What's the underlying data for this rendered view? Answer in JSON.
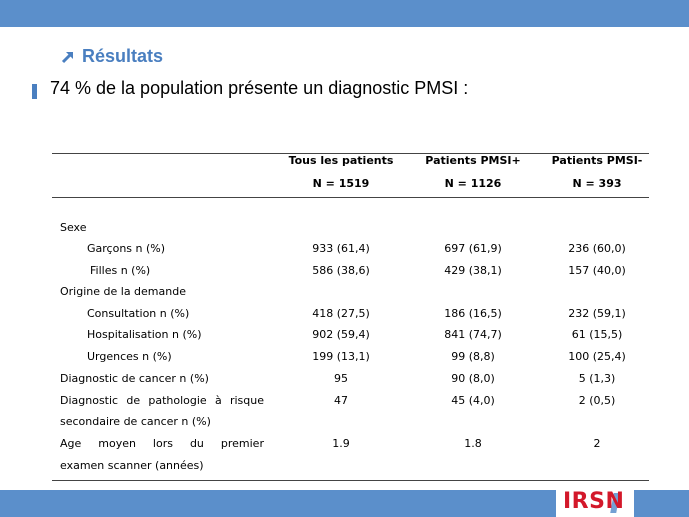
{
  "header": {
    "title": "Résultats",
    "subtitle": "74 % de la population présente un diagnostic PMSI :"
  },
  "table": {
    "columns": [
      {
        "label": "Tous les patients",
        "n": "N = 1519"
      },
      {
        "label": "Patients PMSI+",
        "n": "N = 1126"
      },
      {
        "label": "Patients PMSI-",
        "n": "N = 393"
      }
    ],
    "rows": [
      {
        "label": "Sexe",
        "values": [
          "",
          "",
          ""
        ]
      },
      {
        "label": "Garçons n (%)",
        "values": [
          "933 (61,4)",
          "697 (61,9)",
          "236 (60,0)"
        ]
      },
      {
        "label": "Filles n (%)",
        "values": [
          "586 (38,6)",
          "429 (38,1)",
          "157 (40,0)"
        ]
      },
      {
        "label": "Origine de la demande",
        "values": [
          "",
          "",
          ""
        ]
      },
      {
        "label": "Consultation n (%)",
        "values": [
          "418 (27,5)",
          "186 (16,5)",
          "232 (59,1)"
        ]
      },
      {
        "label": "Hospitalisation n (%)",
        "values": [
          "902 (59,4)",
          "841 (74,7)",
          "61 (15,5)"
        ]
      },
      {
        "label": "Urgences n (%)",
        "values": [
          "199 (13,1)",
          "99 (8,8)",
          "100 (25,4)"
        ]
      },
      {
        "label": "Diagnostic de cancer n (%)",
        "values": [
          "95",
          "90 (8,0)",
          "5 (1,3)"
        ]
      },
      {
        "label_line1_words": [
          "Diagnostic",
          "de",
          "pathologie",
          "à",
          "risque"
        ],
        "label_line2": "secondaire de cancer n (%)",
        "values": [
          "47",
          "45 (4,0)",
          "2 (0,5)"
        ]
      },
      {
        "label_line1_words": [
          "Age",
          "moyen",
          "lors",
          "du",
          "premier"
        ],
        "label_line2": "examen scanner (années)",
        "values": [
          "1.9",
          "1.8",
          "2"
        ]
      }
    ]
  },
  "logo": {
    "text": "IRSN"
  },
  "colors": {
    "band": "#5b8fcb",
    "title": "#4a7fc0",
    "logo": "#d3182a"
  }
}
